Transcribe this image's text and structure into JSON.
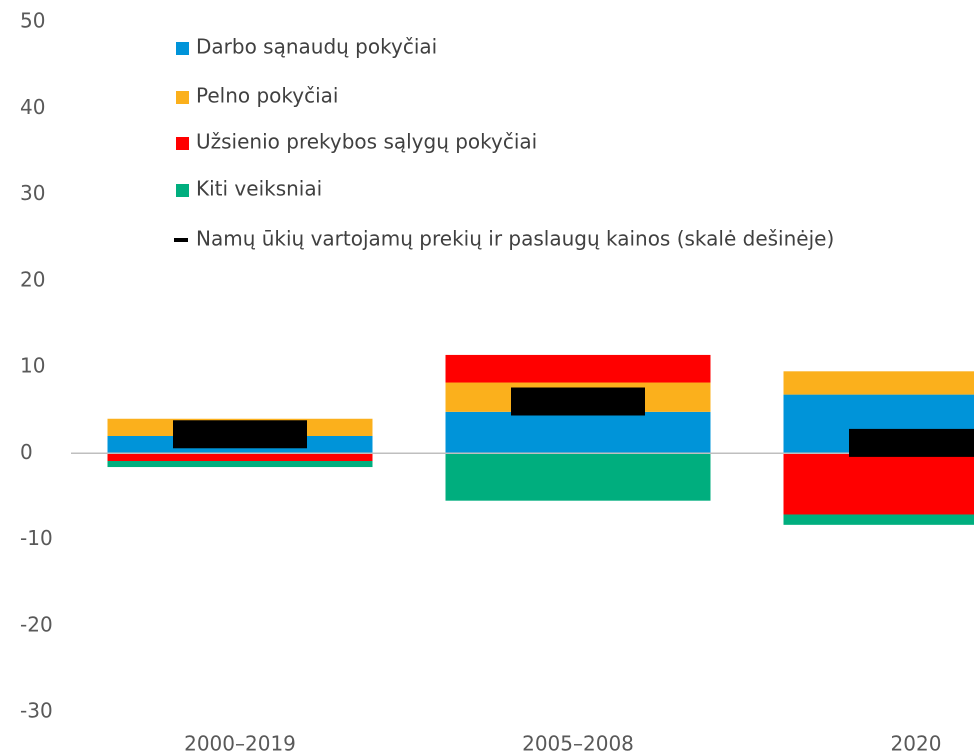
{
  "chart_data": {
    "type": "bar",
    "stacked": true,
    "categories": [
      "2000–2019",
      "2005–2008",
      "2020"
    ],
    "series": [
      {
        "name": "Darbo sąnaudų pokyčiai",
        "color": "#0094d9",
        "values": [
          2.0,
          4.8,
          6.8
        ]
      },
      {
        "name": "Pelno pokyčiai",
        "color": "#fbb01c",
        "values": [
          2.0,
          3.4,
          2.7
        ]
      },
      {
        "name": "Užsienio prekybos sąlygų pokyčiai",
        "color": "#ff0000",
        "values": [
          -0.9,
          3.2,
          -7.1
        ]
      },
      {
        "name": "Kiti veiksniai",
        "color": "#00ae7e",
        "values": [
          -0.7,
          -5.5,
          -1.2
        ]
      },
      {
        "name": "Namų ūkių vartojamų prekių ir paslaugų kainos (skalė dešinėje)",
        "color": "#000000",
        "kind": "marker",
        "values": [
          2.2,
          6.0,
          1.2
        ]
      }
    ],
    "ylim": [
      -30,
      50
    ],
    "yticks": [
      -30,
      -20,
      -10,
      0,
      10,
      20,
      30,
      40,
      50
    ],
    "yticks_labels": null,
    "grid": false,
    "legend": "top-left"
  }
}
